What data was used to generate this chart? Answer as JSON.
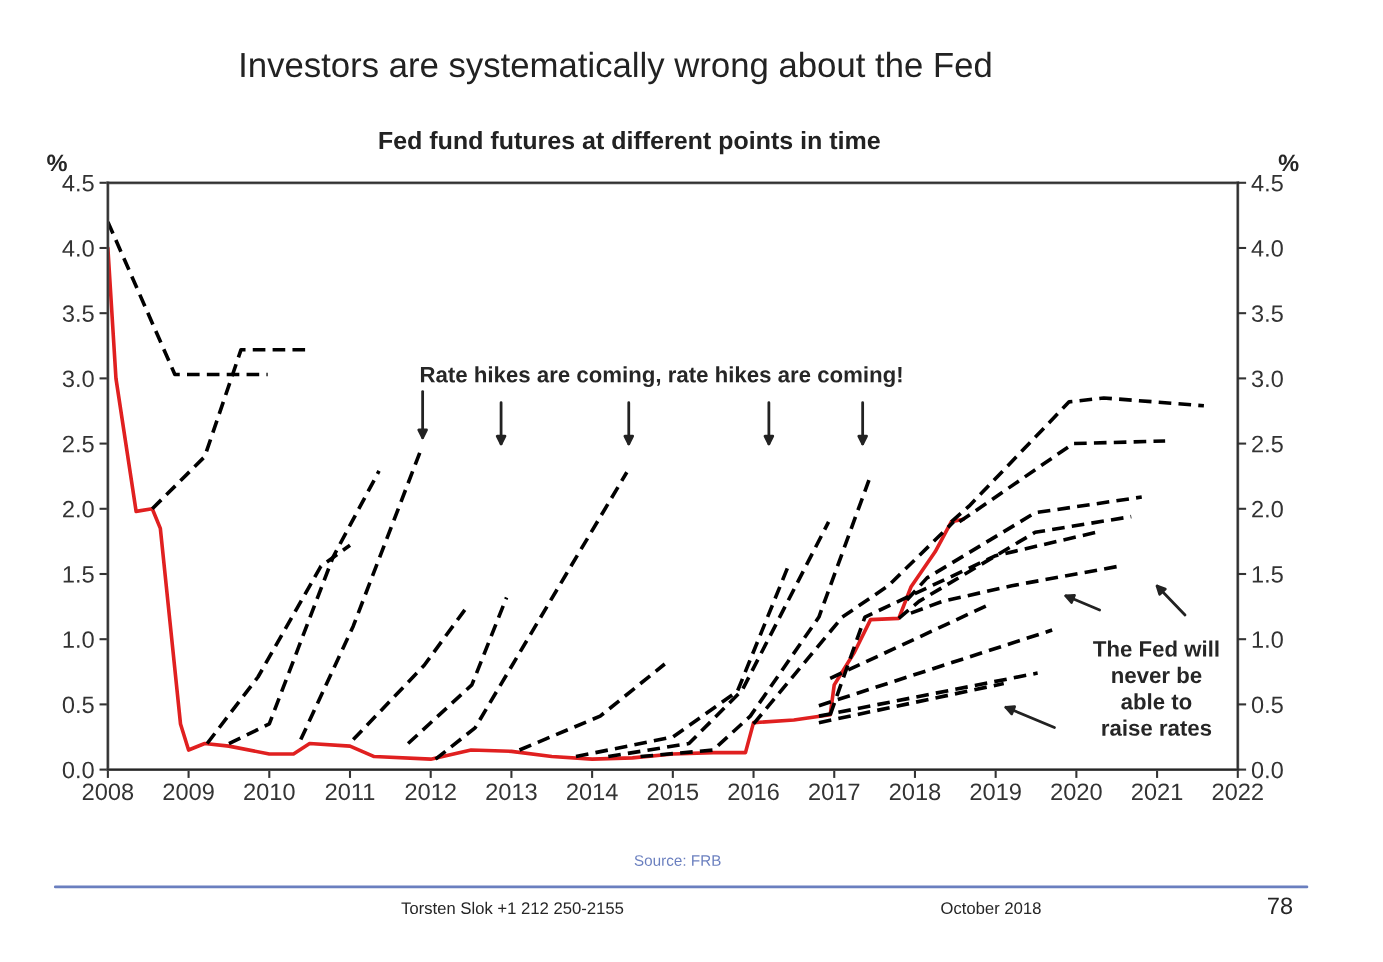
{
  "chart_data": {
    "type": "line",
    "title": "Investors are systematically wrong about the Fed",
    "subtitle": "Fed fund futures at different points in time",
    "ylabel": "%",
    "y2label": "%",
    "xlim": [
      2008,
      2022
    ],
    "xticks": [
      2008,
      2009,
      2010,
      2011,
      2012,
      2013,
      2014,
      2015,
      2016,
      2017,
      2018,
      2019,
      2020,
      2021,
      2022
    ],
    "ylim": [
      0,
      4.5
    ],
    "yticks": [
      {
        "value": 0,
        "label": "0.0"
      },
      0.5,
      {
        "value": 1,
        "label": "1.0"
      },
      1.5,
      {
        "value": 2,
        "label": "2.0"
      },
      2.5,
      {
        "value": 3,
        "label": "3.0"
      },
      3.5,
      {
        "value": 4,
        "label": "4.0"
      },
      4.5
    ],
    "y2lim": [
      0,
      4.5
    ],
    "y2ticks": [
      {
        "value": 0,
        "label": "0.0"
      },
      0.5,
      {
        "value": 1,
        "label": "1.0"
      },
      1.5,
      {
        "value": 2,
        "label": "2.0"
      },
      2.5,
      {
        "value": 3,
        "label": "3.0"
      },
      3.5,
      {
        "value": 4,
        "label": "4.0"
      },
      4.5
    ],
    "grid": false,
    "annotations": [
      {
        "text": "Rate hikes are coming, rate hikes are coming!",
        "x": 2011.9,
        "y": 2.5
      },
      "The Fed will never be able to raise rates",
      "Source: FRB",
      "Torsten Slok +1 212 250-2155",
      "October 2018",
      "78"
    ],
    "series": [
      {
        "color": "#e02020",
        "line_style": "solid",
        "x": [
          2008.0,
          2008.1,
          2008.35,
          2008.55,
          2008.65,
          2008.9,
          2009.0,
          2009.2,
          2009.5,
          2010.0,
          2010.3,
          2010.5,
          2011.0,
          2011.3,
          2012.0,
          2012.5,
          2013.0,
          2013.5,
          2014.0,
          2014.5,
          2015.0,
          2015.5,
          2015.9,
          2016.0,
          2016.5,
          2016.95,
          2017.0,
          2017.25,
          2017.45,
          2017.8,
          2017.95,
          2018.25,
          2018.45,
          2018.6
        ],
        "values": [
          4.0,
          3.0,
          1.98,
          2.0,
          1.85,
          0.35,
          0.15,
          0.2,
          0.18,
          0.12,
          0.12,
          0.2,
          0.18,
          0.1,
          0.08,
          0.15,
          0.14,
          0.1,
          0.08,
          0.09,
          0.12,
          0.13,
          0.13,
          0.36,
          0.38,
          0.42,
          0.65,
          0.9,
          1.15,
          1.16,
          1.4,
          1.67,
          1.9,
          1.92
        ]
      },
      {
        "color": "#000000",
        "line_style": "dashed",
        "x": [
          2008.0,
          2008.83,
          2009.98
        ],
        "values": [
          4.2,
          3.03,
          3.03
        ]
      },
      {
        "color": "#000000",
        "line_style": "dashed",
        "x": [
          2008.55,
          2009.2,
          2009.65,
          2010.5
        ],
        "values": [
          2.0,
          2.4,
          3.22,
          3.22
        ]
      },
      {
        "color": "#000000",
        "line_style": "dashed",
        "x": [
          2009.23,
          2009.86,
          2010.64,
          2011.0
        ],
        "values": [
          0.2,
          0.71,
          1.56,
          1.72
        ]
      },
      {
        "color": "#000000",
        "line_style": "dashed",
        "x": [
          2009.5,
          2010.0,
          2010.79,
          2011.36
        ],
        "values": [
          0.2,
          0.35,
          1.63,
          2.29
        ]
      },
      {
        "color": "#000000",
        "line_style": "dashed",
        "x": [
          2010.39,
          2011.04,
          2011.89
        ],
        "values": [
          0.23,
          1.1,
          2.47
        ]
      },
      {
        "color": "#000000",
        "line_style": "dashed",
        "x": [
          2011.04,
          2011.92,
          2012.44
        ],
        "values": [
          0.23,
          0.8,
          1.24
        ]
      },
      {
        "color": "#000000",
        "line_style": "dashed",
        "x": [
          2011.72,
          2012.51,
          2012.94
        ],
        "values": [
          0.2,
          0.65,
          1.32
        ]
      },
      {
        "color": "#000000",
        "line_style": "dashed",
        "x": [
          2012.06,
          2012.55,
          2013.68,
          2014.43
        ],
        "values": [
          0.08,
          0.32,
          1.5,
          2.28
        ]
      },
      {
        "color": "#000000",
        "line_style": "dashed",
        "x": [
          2013.1,
          2014.1,
          2014.9
        ],
        "values": [
          0.15,
          0.41,
          0.81
        ]
      },
      {
        "color": "#000000",
        "line_style": "dashed",
        "x": [
          2013.8,
          2015.0,
          2015.8,
          2016.43
        ],
        "values": [
          0.1,
          0.25,
          0.6,
          1.56
        ]
      },
      {
        "color": "#000000",
        "line_style": "dashed",
        "x": [
          2014.2,
          2015.2,
          2015.86,
          2016.93
        ],
        "values": [
          0.1,
          0.2,
          0.61,
          1.9
        ]
      },
      {
        "color": "#000000",
        "line_style": "dashed",
        "x": [
          2014.6,
          2015.5,
          2015.96,
          2016.81,
          2017.43
        ],
        "values": [
          0.1,
          0.15,
          0.41,
          1.17,
          2.22
        ]
      },
      {
        "color": "#000000",
        "line_style": "dashed",
        "x": [
          2016.0,
          2017.1,
          2017.67,
          2018.48
        ],
        "values": [
          0.35,
          1.17,
          1.41,
          1.9
        ]
      },
      {
        "color": "#000000",
        "line_style": "dashed",
        "x": [
          2018.45,
          2018.67,
          2019.91,
          2020.34,
          2021.58
        ],
        "values": [
          1.9,
          2.02,
          2.82,
          2.85,
          2.79
        ]
      },
      {
        "color": "#000000",
        "line_style": "dashed",
        "x": [
          2018.55,
          2018.67,
          2019.96,
          2021.1
        ],
        "values": [
          1.9,
          1.95,
          2.5,
          2.52
        ]
      },
      {
        "color": "#000000",
        "line_style": "dashed",
        "x": [
          2017.9,
          2018.15,
          2019.49,
          2020.81
        ],
        "values": [
          1.3,
          1.47,
          1.97,
          2.09
        ]
      },
      {
        "color": "#000000",
        "line_style": "dashed",
        "x": [
          2017.8,
          2018.05,
          2019.49,
          2020.68
        ],
        "values": [
          1.16,
          1.29,
          1.82,
          1.94
        ]
      },
      {
        "color": "#000000",
        "line_style": "dashed",
        "x": [
          2016.95,
          2017.38,
          2019.0,
          2020.25
        ],
        "values": [
          0.42,
          1.17,
          1.64,
          1.82
        ]
      },
      {
        "color": "#000000",
        "line_style": "dashed",
        "x": [
          2017.95,
          2018.34,
          2019.2,
          2020.53
        ],
        "values": [
          1.2,
          1.29,
          1.41,
          1.56
        ]
      },
      {
        "color": "#000000",
        "line_style": "dashed",
        "x": [
          2016.95,
          2018.9
        ],
        "values": [
          0.7,
          1.26
        ]
      },
      {
        "color": "#000000",
        "line_style": "dashed",
        "x": [
          2016.81,
          2019.7
        ],
        "values": [
          0.49,
          1.07
        ]
      },
      {
        "color": "#000000",
        "line_style": "dashed",
        "x": [
          2016.81,
          2019.52
        ],
        "values": [
          0.41,
          0.74
        ]
      },
      {
        "color": "#000000",
        "line_style": "dashed",
        "x": [
          2016.81,
          2017.5,
          2019.1
        ],
        "values": [
          0.36,
          0.45,
          0.66
        ]
      }
    ]
  }
}
